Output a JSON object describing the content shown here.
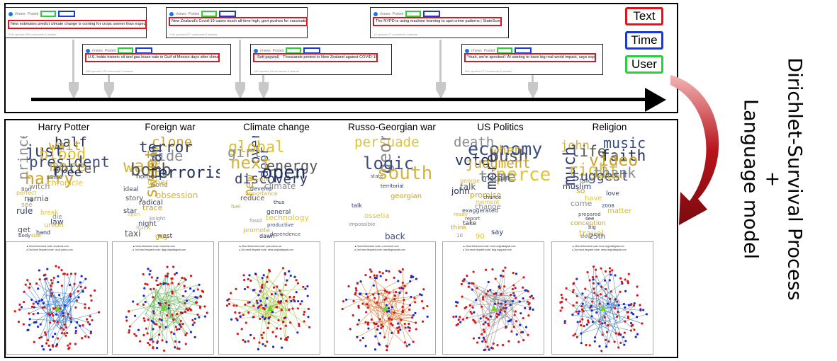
{
  "timeline": {
    "cards": [
      {
        "text": "New estimates predict climate change is coming for crops sooner than expected",
        "source": "r/news",
        "posted": "Posted",
        "stats": "3.5k upvotes  538 comments  5 awards"
      },
      {
        "text": "U.S. holds historic oil and gas lease sale in Gulf of Mexico days after climate summit",
        "source": "r/news",
        "posted": "Posted",
        "stats": "386 upvotes  178 comments  2 awards"
      },
      {
        "text": "New Zealand's Covid-19 cases touch all-time high, govt pushes for vaccination",
        "source": "r/news",
        "posted": "Posted",
        "stats": "2.4k upvotes  237 comments  5 awards"
      },
      {
        "text": "Thousands protest in New Zealand against COVID-19 rules.",
        "flair": "Soft paywall",
        "source": "r/news",
        "posted": "Posted",
        "stats": "119 upvotes  64 comments  6 awards"
      },
      {
        "text": "The NYPD is using machine learning to spot crime patterns | StateScoop",
        "source": "r/news",
        "posted": "Posted",
        "stats": "13 upvotes  27 comments  4 awards"
      },
      {
        "text": "'Yeah, we're spooked': AI starting to have big real-world impact, says expert",
        "source": "r/news",
        "posted": "Posted",
        "stats": "89k upvotes  171 comments  6 awards"
      }
    ]
  },
  "legend": [
    {
      "label": "Text",
      "color": "#e0141c"
    },
    {
      "label": "Time",
      "color": "#1a3ad1"
    },
    {
      "label": "User",
      "color": "#2ecc40"
    }
  ],
  "side_label": {
    "line1": "Dirichlet-Survival Process",
    "line2": "+",
    "line3": "Language model"
  },
  "topics": [
    {
      "title": "Harry Potter",
      "words": [
        "half",
        "wait",
        "just",
        "blood",
        "prince",
        "president",
        "more",
        "potter",
        "free",
        "harry",
        "same",
        "chronicle",
        "witch",
        "lion",
        "perfect",
        "narnia",
        "fix",
        "see",
        "rule",
        "break",
        "die",
        "law",
        "union",
        "get",
        "hand",
        "size",
        "body"
      ]
    },
    {
      "title": "Foreign war",
      "words": [
        "clone",
        "terror",
        "dark",
        "side",
        "iran",
        "war",
        "bomb",
        "terrorism",
        "sweet",
        "home",
        "other",
        "world",
        "ideal",
        "obsession",
        "story",
        "radical",
        "trace",
        "star",
        "open",
        "knight",
        "night",
        "suck",
        "taxi",
        "west",
        "guy"
      ]
    },
    {
      "title": "Climate change",
      "words": [
        "overstate",
        "global",
        "girl",
        "door",
        "next",
        "energy",
        "open",
        "new",
        "discovery",
        "change",
        "climate",
        "develop",
        "importance",
        "reduce",
        "thus",
        "fuel",
        "general",
        "technology",
        "fossil",
        "productive",
        "promote",
        "dependence",
        "dawn"
      ]
    },
    {
      "title": "Russo-Georgian war",
      "words": [
        "persuade",
        "georgia",
        "logic",
        "south",
        "state",
        "territorial",
        "georgian",
        "talk",
        "ossetia",
        "impossible",
        "back"
      ]
    },
    {
      "title": "US Politics",
      "words": [
        "death",
        "economy",
        "when",
        "bush",
        "vote",
        "judgment",
        "more",
        "percent",
        "time",
        "mccain",
        "george",
        "talk",
        "john",
        "promise",
        "chance",
        "moment",
        "change",
        "exaggerated",
        "ready",
        "report",
        "take",
        "think",
        "say",
        "90",
        "10"
      ]
    },
    {
      "title": "Religion",
      "words": [
        "music",
        "john",
        "life",
        "faith",
        "video",
        "much",
        "right",
        "thank",
        "suggest",
        "mccain",
        "talk",
        "muslim",
        "so",
        "love",
        "have",
        "come",
        "2008",
        "matter",
        "prepared",
        "see",
        "conception",
        "big",
        "travel",
        "deal",
        "25th"
      ]
    }
  ],
  "networks": [
    {
      "line1": "Most influenced node: newsvine.com",
      "line2": "2nd most frequent node: us.rd.yahoo.com",
      "edge_color": "#2b73c9"
    },
    {
      "line1": "Most influenced node: newsvine.com",
      "line2": "2nd most frequent node: digg.originalsignal.com",
      "edge_color": "#5fae4d"
    },
    {
      "line1": "Most influenced node: yam.cancer.ca",
      "line2": "2nd most frequent node: news.originalsignal.com",
      "edge_color": "#9bbf3a"
    },
    {
      "line1": "Most influenced node: c.moreover.com",
      "line2": "2nd most frequent node: washingtonpost.com",
      "edge_color": "#d2691e"
    },
    {
      "line1": "Most influenced node: news.originalsignal.com",
      "line2": "2nd most frequent node: blog.myspace.com",
      "edge_color": "#8c8c8c"
    },
    {
      "line1": "Most influenced node: buzz.originalsignal.com",
      "line2": "2nd most frequent node: news.originalsignal.com",
      "edge_color": "#4a7fb5"
    }
  ]
}
